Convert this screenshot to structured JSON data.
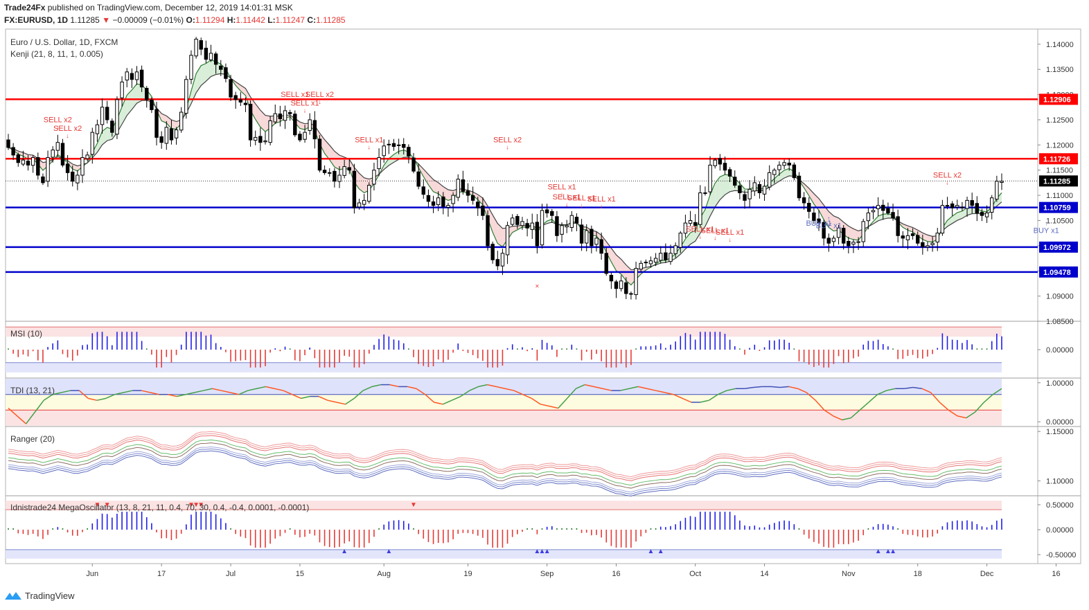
{
  "header": {
    "publisher": "Trade24Fx",
    "published_text": "published on TradingView.com, December 12, 2019 14:01:31 MSK",
    "symbol": "FX:EURUSD, 1D",
    "last": "1.11285",
    "change": "−0.00009 (−0.01%)",
    "o_label": "O:",
    "o": "1.11294",
    "h_label": "H:",
    "h": "1.11442",
    "l_label": "L:",
    "l": "1.11247",
    "c_label": "C:",
    "c": "1.11285"
  },
  "footer": {
    "brand": "TradingView",
    "icon": "tradingview-logo-icon"
  },
  "colors": {
    "bull": "#ffffff",
    "bear": "#000000",
    "resistance": "#ff0000",
    "support": "#0000cc",
    "sell_text": "#e53935",
    "buy_text": "#5c6bc0"
  },
  "chart_data": [
    {
      "type": "candlestick",
      "title": "Euro / U.S. Dollar, 1D, FXCM",
      "indicator": "Kenji (21, 8, 11, 1, 0.005)",
      "ylim": [
        1.085,
        1.143
      ],
      "y_ticks": [
        "1.14000",
        "1.13500",
        "1.13000",
        "1.12500",
        "1.12000",
        "1.11500",
        "1.11000",
        "1.10500",
        "1.10000",
        "1.09500",
        "1.09000",
        "1.08500"
      ],
      "y_tick_values": [
        1.14,
        1.135,
        1.13,
        1.125,
        1.12,
        1.115,
        1.11,
        1.105,
        1.1,
        1.095,
        1.09,
        1.085
      ],
      "x_ticks": [
        "Jun",
        "17",
        "Jul",
        "15",
        "Aug",
        "19",
        "Sep",
        "16",
        "Oct",
        "14",
        "Nov",
        "18",
        "Dec",
        "16"
      ],
      "x_tick_index": [
        17,
        31,
        45,
        59,
        76,
        93,
        109,
        123,
        139,
        153,
        170,
        184,
        198,
        212
      ],
      "horizontal_levels": [
        {
          "label": "1.12906",
          "value": 1.12906,
          "kind": "resistance"
        },
        {
          "label": "1.11726",
          "value": 1.11726,
          "kind": "resistance"
        },
        {
          "label": "1.10759",
          "value": 1.10759,
          "kind": "support"
        },
        {
          "label": "1.09972",
          "value": 1.09972,
          "kind": "support"
        },
        {
          "label": "1.09478",
          "value": 1.09478,
          "kind": "support"
        }
      ],
      "last_price_label": "1.11285",
      "last_price": 1.11285,
      "closes": [
        1.1195,
        1.118,
        1.1165,
        1.117,
        1.116,
        1.1175,
        1.114,
        1.1125,
        1.1175,
        1.119,
        1.1205,
        1.116,
        1.1145,
        1.1128,
        1.114,
        1.1175,
        1.118,
        1.1225,
        1.124,
        1.1275,
        1.125,
        1.1225,
        1.129,
        1.1325,
        1.1345,
        1.133,
        1.1345,
        1.1315,
        1.129,
        1.127,
        1.1215,
        1.1205,
        1.1235,
        1.121,
        1.123,
        1.1265,
        1.133,
        1.1378,
        1.141,
        1.139,
        1.137,
        1.1382,
        1.136,
        1.135,
        1.1332,
        1.1295,
        1.129,
        1.1285,
        1.128,
        1.121,
        1.1215,
        1.1205,
        1.1208,
        1.1248,
        1.1262,
        1.1252,
        1.1268,
        1.1262,
        1.122,
        1.121,
        1.1225,
        1.125,
        1.1212,
        1.115,
        1.1145,
        1.1145,
        1.1128,
        1.114,
        1.1157,
        1.115,
        1.1075,
        1.1085,
        1.109,
        1.112,
        1.115,
        1.1175,
        1.1198,
        1.12,
        1.1197,
        1.12,
        1.1195,
        1.1178,
        1.1148,
        1.1118,
        1.1102,
        1.1088,
        1.108,
        1.1095,
        1.1078,
        1.108,
        1.11,
        1.1132,
        1.1108,
        1.11,
        1.109,
        1.1075,
        1.106,
        1.1,
        1.0972,
        1.096,
        1.0985,
        1.104,
        1.1055,
        1.1042,
        1.1048,
        1.1035,
        1.1045,
        1.1,
        1.107,
        1.1065,
        1.106,
        1.102,
        1.104,
        1.104,
        1.106,
        1.1045,
        1.1005,
        1.103,
        1.1,
        1.1015,
        1.0985,
        1.0945,
        1.093,
        1.0915,
        1.093,
        1.0905,
        1.0905,
        1.0955,
        1.0965,
        1.0967,
        1.097,
        1.0975,
        1.0985,
        1.0972,
        1.0985,
        1.1,
        1.1025,
        1.1045,
        1.105,
        1.104,
        1.1105,
        1.1105,
        1.116,
        1.117,
        1.1162,
        1.115,
        1.1138,
        1.112,
        1.1105,
        1.109,
        1.1112,
        1.1125,
        1.1105,
        1.1118,
        1.1145,
        1.115,
        1.116,
        1.1165,
        1.116,
        1.1135,
        1.1095,
        1.1085,
        1.1068,
        1.105,
        1.1045,
        1.1015,
        1.1005,
        1.1015,
        1.1035,
        1.1005,
        1.1,
        1.1007,
        1.1008,
        1.1048,
        1.1065,
        1.107,
        1.108,
        1.107,
        1.1065,
        1.1055,
        1.102,
        1.1015,
        1.102,
        1.102,
        1.1005,
        1.0998,
        1.1,
        1.1005,
        1.1025,
        1.108,
        1.108,
        1.1075,
        1.108,
        1.1075,
        1.109,
        1.108,
        1.1065,
        1.106,
        1.1065,
        1.1095,
        1.1128,
        1.1128
      ],
      "sell_signals": [
        {
          "label": "SELL x2",
          "index": 10,
          "price": 1.1245
        },
        {
          "label": "SELL x2",
          "index": 12,
          "price": 1.1228
        },
        {
          "label": "SELL x1",
          "index": 58,
          "price": 1.1295
        },
        {
          "label": "SELL x2",
          "index": 63,
          "price": 1.1295
        },
        {
          "label": "SELL x1",
          "index": 60,
          "price": 1.1278
        },
        {
          "label": "SELL x1",
          "index": 73,
          "price": 1.1205
        },
        {
          "label": "SELL x2",
          "index": 101,
          "price": 1.1205
        },
        {
          "label": "SELL x1",
          "index": 112,
          "price": 1.1112
        },
        {
          "label": "SELL x1",
          "index": 113,
          "price": 1.1092
        },
        {
          "label": "SELL x1",
          "index": 116,
          "price": 1.109
        },
        {
          "label": "SELL x1",
          "index": 120,
          "price": 1.1088
        },
        {
          "label": "SELL x1",
          "index": 140,
          "price": 1.1028
        },
        {
          "label": "SELL x1",
          "index": 143,
          "price": 1.1025
        },
        {
          "label": "SELL x1",
          "index": 146,
          "price": 1.1022
        },
        {
          "label": "SELL x2",
          "index": 190,
          "price": 1.1135
        }
      ],
      "buy_signals": [
        {
          "label": "BUY x1",
          "index": 164,
          "price": 1.104
        },
        {
          "label": "BUY x1",
          "index": 166,
          "price": 1.1035
        },
        {
          "label": "BUY x1",
          "index": 210,
          "price": 1.1025
        }
      ]
    },
    {
      "type": "bar",
      "title": "MSI (10)",
      "ylim": [
        -0.035,
        0.035
      ],
      "y_ticks": [
        "0.00000"
      ],
      "y_tick_values": [
        0
      ]
    },
    {
      "type": "line",
      "title": "TDI (13, 21)",
      "ylim": [
        -0.12,
        1.12
      ],
      "y_ticks": [
        "1.00000",
        "0.00000"
      ],
      "y_tick_values": [
        1,
        0
      ],
      "values": [
        0.35,
        0.15,
        -0.05,
        0.25,
        0.55,
        0.7,
        0.75,
        0.8,
        0.8,
        0.6,
        0.55,
        0.6,
        0.7,
        0.75,
        0.8,
        0.8,
        0.75,
        0.7,
        0.7,
        0.65,
        0.7,
        0.75,
        0.8,
        0.85,
        0.8,
        0.75,
        0.7,
        0.8,
        0.85,
        0.9,
        0.85,
        0.8,
        0.7,
        0.6,
        0.65,
        0.65,
        0.55,
        0.5,
        0.45,
        0.6,
        0.8,
        0.9,
        0.95,
        0.95,
        0.9,
        0.9,
        0.85,
        0.7,
        0.5,
        0.45,
        0.55,
        0.65,
        0.8,
        0.9,
        0.95,
        0.9,
        0.85,
        0.8,
        0.7,
        0.6,
        0.45,
        0.4,
        0.35,
        0.6,
        0.85,
        0.95,
        0.9,
        0.85,
        0.8,
        0.8,
        0.85,
        0.9,
        0.85,
        0.8,
        0.75,
        0.7,
        0.6,
        0.5,
        0.5,
        0.55,
        0.7,
        0.8,
        0.85,
        0.85,
        0.88,
        0.9,
        0.9,
        0.88,
        0.9,
        0.85,
        0.75,
        0.55,
        0.3,
        0.15,
        0.05,
        0.1,
        0.3,
        0.5,
        0.7,
        0.8,
        0.85,
        0.85,
        0.88,
        0.85,
        0.75,
        0.5,
        0.3,
        0.15,
        0.1,
        0.25,
        0.5,
        0.7,
        0.85
      ]
    },
    {
      "type": "line",
      "title": "Ranger (20)",
      "ylim": [
        1.085,
        1.155
      ],
      "y_ticks": [
        "1.15000",
        "1.10000"
      ],
      "y_tick_values": [
        1.15,
        1.1
      ]
    },
    {
      "type": "bar",
      "title": "Idnistrade24 MegaOscillator (13, 8, 21, 11, 0.4, 70, 30, 0.4, -0.4, 0.0001, -0.0001)",
      "ylim": [
        -0.68,
        0.68
      ],
      "y_ticks": [
        "0.50000",
        "0.00000",
        "-0.50000"
      ],
      "y_tick_values": [
        0.5,
        0,
        -0.5
      ]
    }
  ]
}
